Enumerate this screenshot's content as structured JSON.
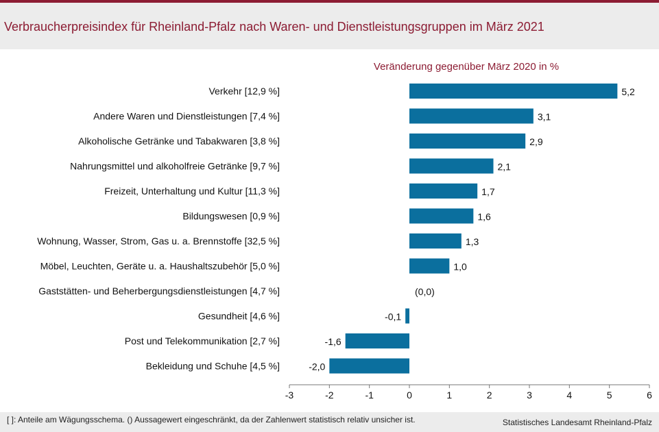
{
  "header": {
    "title": "Verbraucherpreisindex für Rheinland-Pfalz nach Waren- und Dienstleistungsgruppen im März 2021"
  },
  "chart_data": {
    "type": "bar",
    "orientation": "horizontal",
    "subtitle": "Veränderung gegenüber März 2020 in %",
    "categories": [
      "Verkehr [12,9 %]",
      "Andere Waren und Dienstleistungen [7,4 %]",
      "Alkoholische Getränke und Tabakwaren [3,8 %]",
      "Nahrungsmittel und alkoholfreie Getränke [9,7 %]",
      "Freizeit, Unterhaltung und Kultur [11,3 %]",
      "Bildungswesen [0,9 %]",
      "Wohnung, Wasser, Strom, Gas u. a. Brennstoffe [32,5 %]",
      "Möbel, Leuchten, Geräte u. a. Haushaltszubehör [5,0 %]",
      "Gaststätten- und Beherbergungsdienstleistungen [4,7 %]",
      "Gesundheit [4,6 %]",
      "Post und Telekommunikation [2,7 %]",
      "Bekleidung und Schuhe [4,5 %]"
    ],
    "values": [
      5.2,
      3.1,
      2.9,
      2.1,
      1.7,
      1.6,
      1.3,
      1.0,
      0.0,
      -0.1,
      -1.6,
      -2.0
    ],
    "value_labels": [
      "5,2",
      "3,1",
      "2,9",
      "2,1",
      "1,7",
      "1,6",
      "1,3",
      "1,0",
      "(0,0)",
      "-0,1",
      "-1,6",
      "-2,0"
    ],
    "xlim": [
      -3,
      6
    ],
    "xticks": [
      -3,
      -2,
      -1,
      0,
      1,
      2,
      3,
      4,
      5,
      6
    ],
    "xtick_labels": [
      "-3",
      "-2",
      "-1",
      "0",
      "1",
      "2",
      "3",
      "4",
      "5",
      "6"
    ],
    "bar_color": "#0b6f9e",
    "grid": false
  },
  "footer": {
    "note": "[ ]: Anteile am Wägungsschema. () Aussagewert eingeschränkt, da der Zahlenwert  statistisch relativ unsicher ist.",
    "source": "Statistisches Landesamt Rheinland-Pfalz"
  }
}
